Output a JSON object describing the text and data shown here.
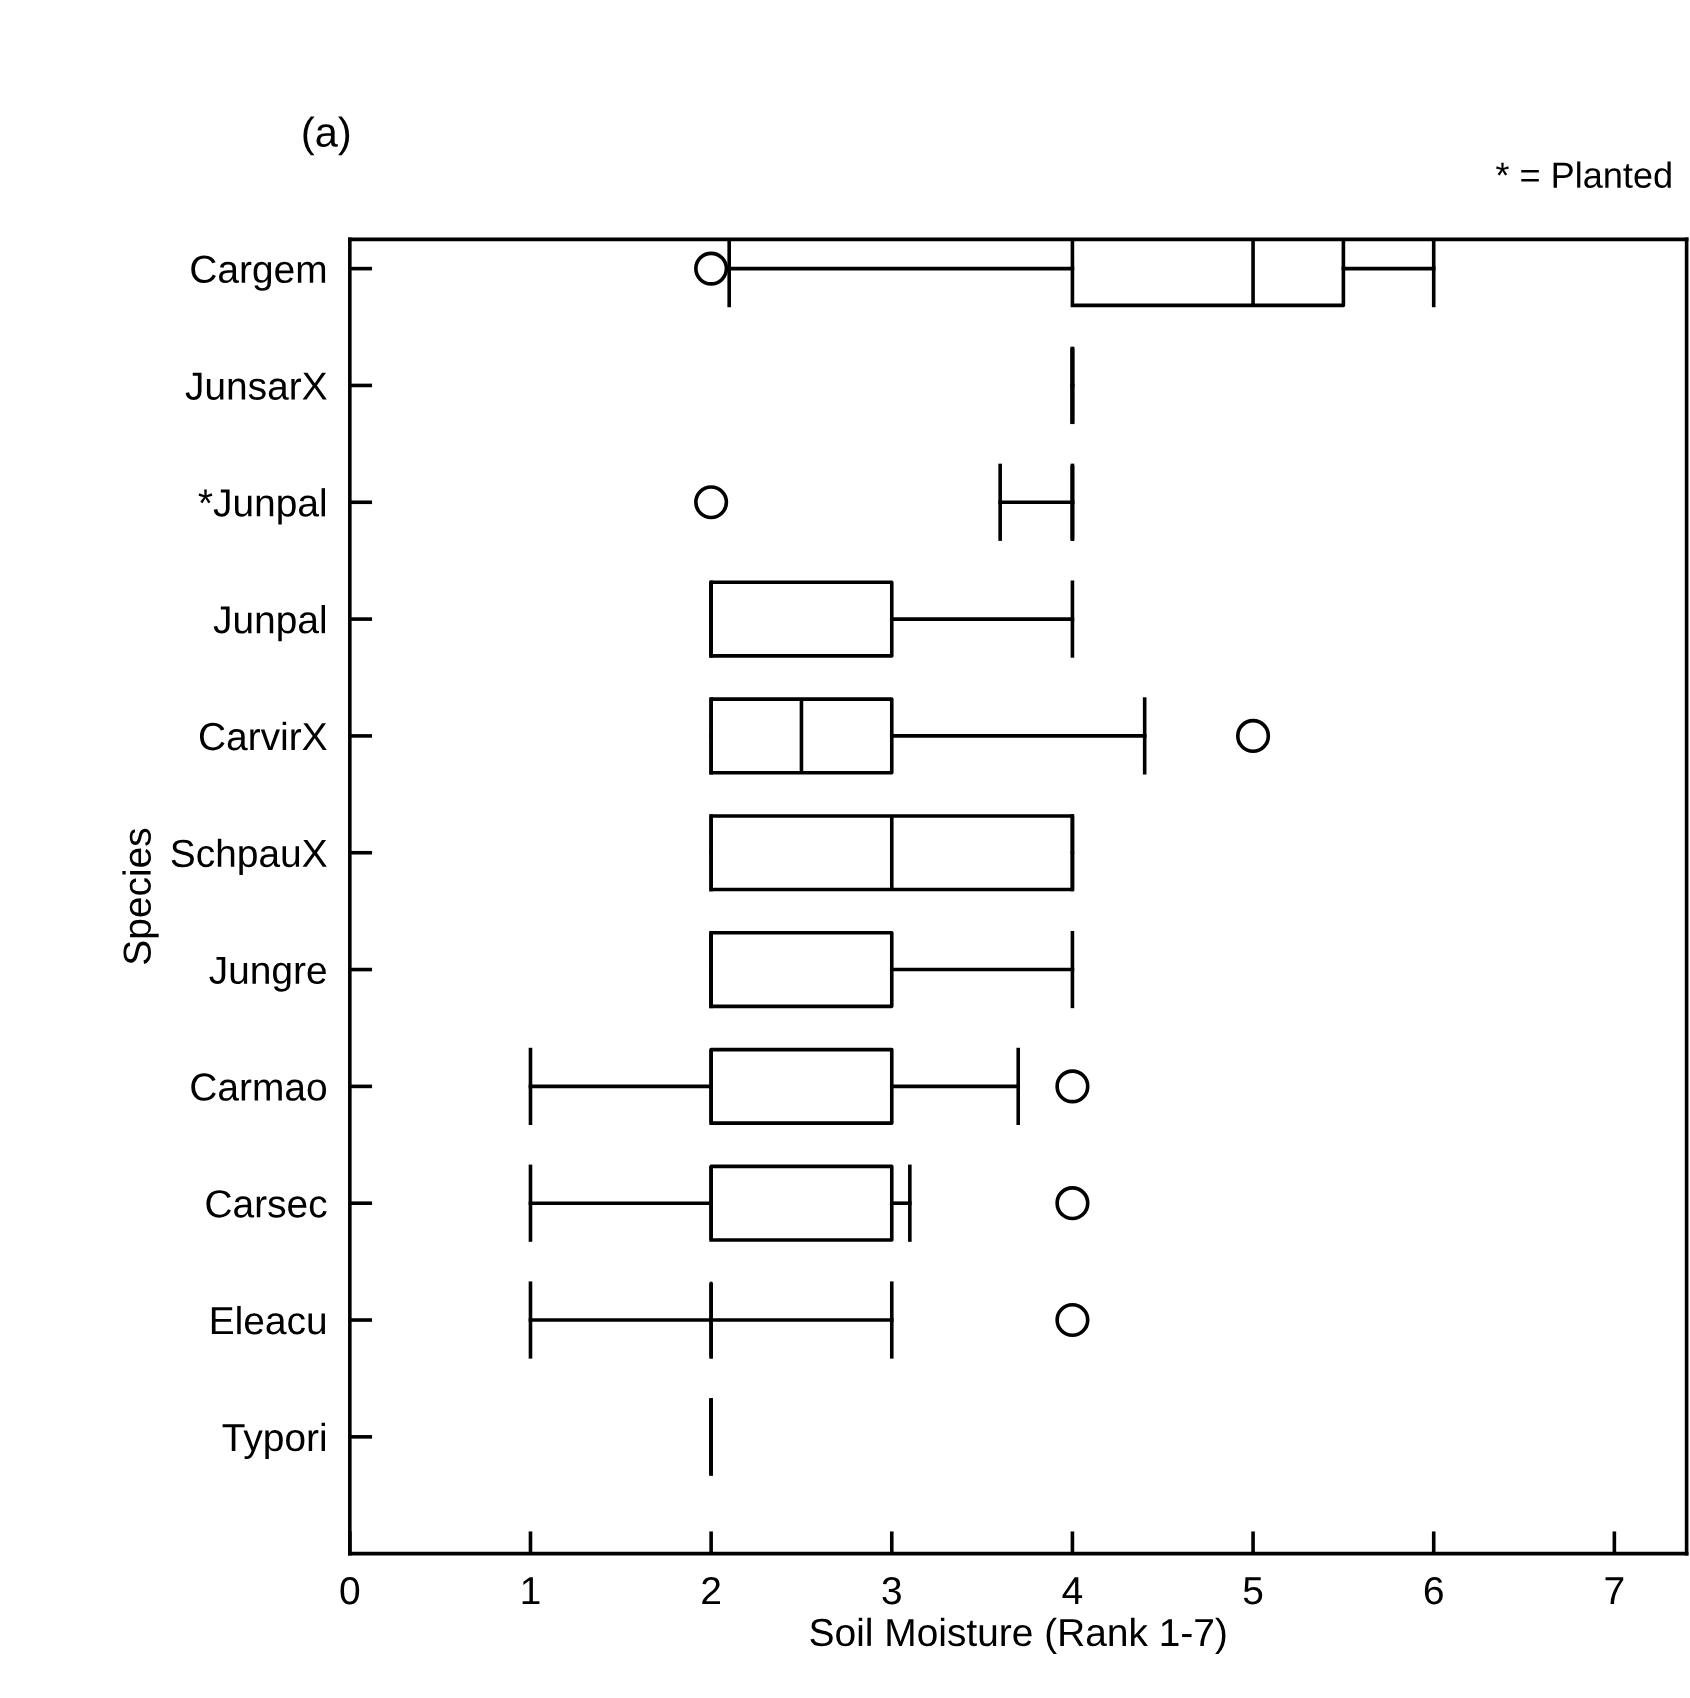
{
  "chart_data": {
    "type": "box",
    "title": "(a)",
    "xlabel": "Soil Moisture (Rank 1-7)",
    "ylabel": "Species",
    "annotations": [
      "* = Planted"
    ],
    "orientation": "horizontal",
    "categories": [
      "Cargem",
      "JunsarX",
      "*Junpal",
      "Junpal",
      "CarvirX",
      "SchpauX",
      "Jungre",
      "Carmao",
      "Carsec",
      "Eleacu",
      "Typori"
    ],
    "boxes": [
      {
        "low": 2.1,
        "q1": 4,
        "median": 5,
        "q3": 5.5,
        "high": 6,
        "outliers": [
          2
        ]
      },
      {
        "low": 4,
        "q1": 4,
        "median": 4,
        "q3": 4,
        "high": 4
      },
      {
        "low": 3.6,
        "q1": 4,
        "median": 4,
        "q3": 4,
        "high": 4,
        "outliers": [
          2
        ]
      },
      {
        "low": 2,
        "q1": 2,
        "median": 2,
        "q3": 3,
        "high": 4
      },
      {
        "low": 2,
        "q1": 2,
        "median": 2.5,
        "q3": 3,
        "high": 4.4,
        "outliers": [
          5
        ]
      },
      {
        "low": 2,
        "q1": 2,
        "median": 3,
        "q3": 4,
        "high": 4
      },
      {
        "low": 2,
        "q1": 2,
        "median": 2,
        "q3": 3,
        "high": 4
      },
      {
        "low": 1,
        "q1": 2,
        "median": 2,
        "q3": 3,
        "high": 3.7,
        "outliers": [
          4
        ]
      },
      {
        "low": 1,
        "q1": 2,
        "median": 2,
        "q3": 3,
        "high": 3.1,
        "outliers": [
          4
        ]
      },
      {
        "low": 1,
        "q1": 2,
        "median": 2,
        "q3": 2,
        "high": 3,
        "outliers": [
          4
        ]
      },
      {
        "low": 2,
        "q1": 2,
        "median": 2,
        "q3": 2,
        "high": 2
      }
    ],
    "xlim": [
      0,
      7.4
    ],
    "xticks": [
      0,
      1,
      2,
      3,
      4,
      5,
      6,
      7
    ]
  }
}
